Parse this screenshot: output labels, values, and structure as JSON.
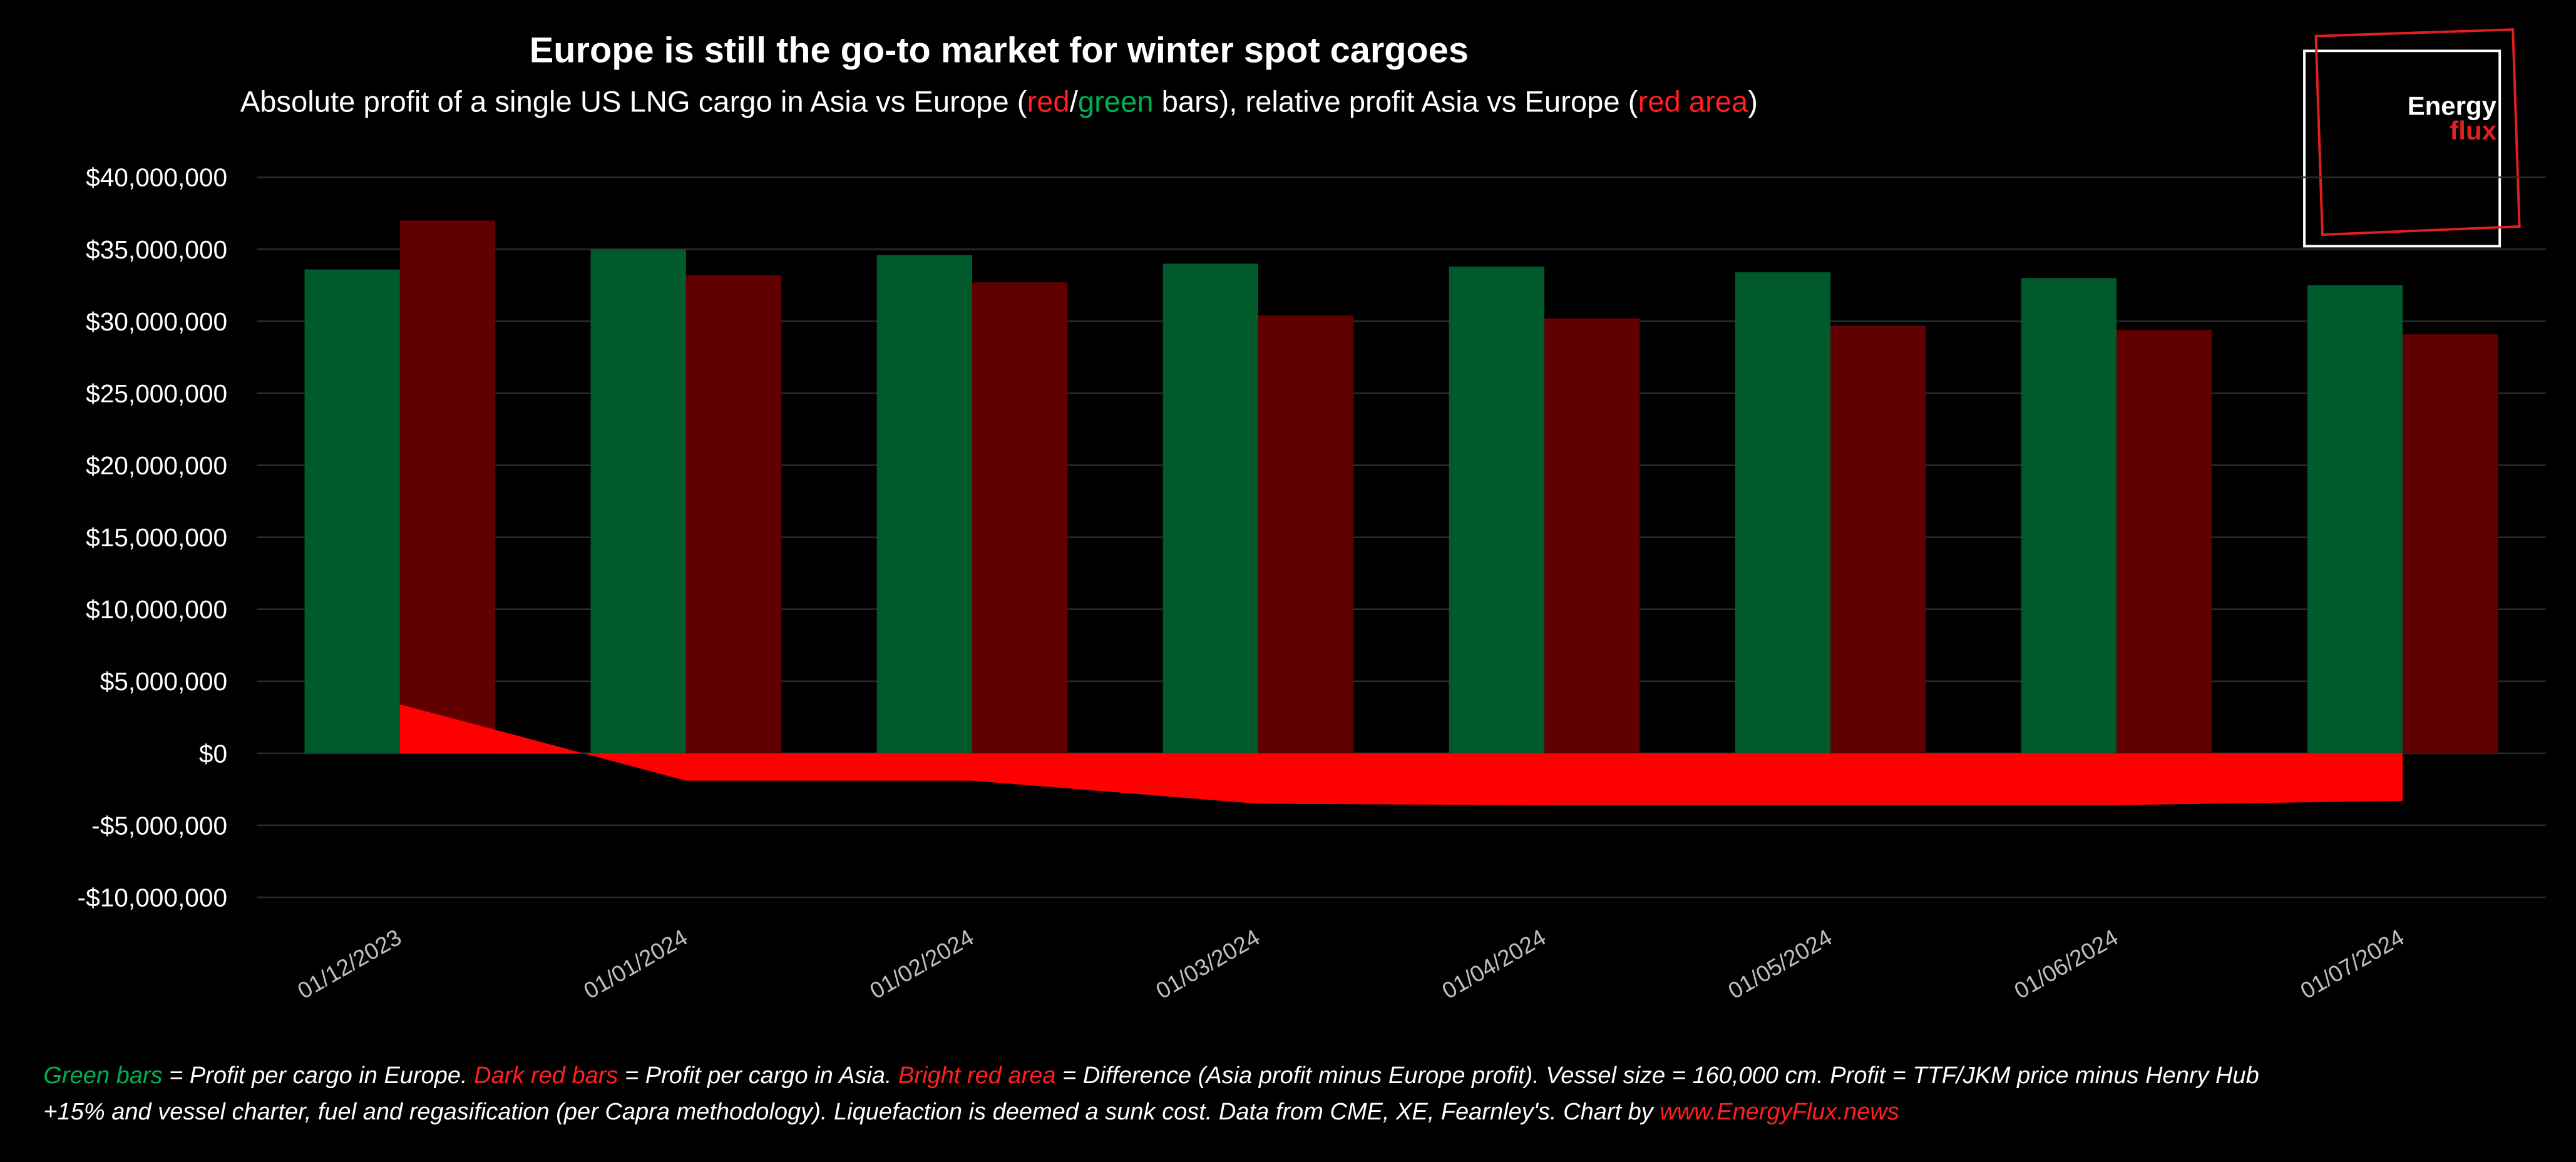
{
  "chart_data": {
    "type": "bar",
    "title": "Europe is still the go-to market for winter spot cargoes",
    "subtitle": [
      "Absolute profit of a single US LNG cargo in Asia vs Europe (",
      "red",
      "/",
      "green",
      " bars), relative profit Asia vs Europe (",
      "red area",
      ")"
    ],
    "categories": [
      "01/12/2023",
      "01/01/2024",
      "01/02/2024",
      "01/03/2024",
      "01/04/2024",
      "01/05/2024",
      "01/06/2024",
      "01/07/2024"
    ],
    "series": [
      {
        "name": "Green bars",
        "color": "#005a2b",
        "type": "bar",
        "values": [
          33600000,
          35000000,
          34600000,
          34000000,
          33800000,
          33400000,
          33000000,
          32500000
        ]
      },
      {
        "name": "Dark red bars",
        "color": "#600000",
        "type": "bar",
        "values": [
          37000000,
          33200000,
          32700000,
          30400000,
          30200000,
          29700000,
          29400000,
          29100000
        ]
      },
      {
        "name": "Bright red area",
        "color": "#ff0000",
        "type": "area",
        "values": [
          3400000,
          -1900000,
          -1900000,
          -3500000,
          -3600000,
          -3600000,
          -3600000,
          -3300000
        ]
      }
    ],
    "ylim": [
      -10000000,
      40000000
    ],
    "yticks": [
      {
        "value": -10000000,
        "label": "-$10,000,000"
      },
      {
        "value": -5000000,
        "label": "-$5,000,000"
      },
      {
        "value": 0,
        "label": "$0"
      },
      {
        "value": 5000000,
        "label": "$5,000,000"
      },
      {
        "value": 10000000,
        "label": "$10,000,000"
      },
      {
        "value": 15000000,
        "label": "$15,000,000"
      },
      {
        "value": 20000000,
        "label": "$20,000,000"
      },
      {
        "value": 25000000,
        "label": "$25,000,000"
      },
      {
        "value": 30000000,
        "label": "$30,000,000"
      },
      {
        "value": 35000000,
        "label": "$35,000,000"
      },
      {
        "value": 40000000,
        "label": "$40,000,000"
      }
    ],
    "grid": true,
    "footnote": [
      " = Profit per cargo in Europe. ",
      " = Profit per cargo in Asia. ",
      " = Difference (Asia profit minus Europe profit). Vessel size = 160,000 cm. Profit = TTF/JKM price minus Henry Hub",
      "+15% and vessel charter, fuel and regasification (per Capra methodology). Liquefaction is deemed a sunk cost. Data from CME, XE, Fearnley's. Chart by ",
      "www.EnergyFlux.news"
    ],
    "logo": [
      "Energy",
      "flux"
    ]
  }
}
